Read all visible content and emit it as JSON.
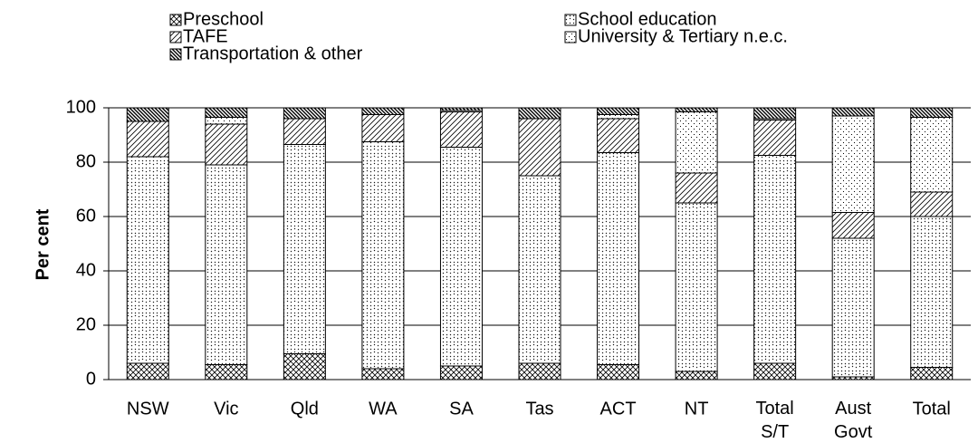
{
  "chart_data": {
    "type": "stacked_bar",
    "y_label": "Per cent",
    "categories": [
      "NSW",
      "Vic",
      "Qld",
      "WA",
      "SA",
      "Tas",
      "ACT",
      "NT",
      "Total S/T",
      "Aust Govt",
      "Total"
    ],
    "series": [
      {
        "name": "Preschool",
        "color": "#000000",
        "values": [
          6,
          5.5,
          9.5,
          4,
          5,
          6,
          5.5,
          3,
          6,
          1,
          4.5
        ]
      },
      {
        "name": "School education",
        "color": "#000000",
        "values": [
          76,
          73.5,
          77,
          83.5,
          80.5,
          69,
          78,
          62,
          76.5,
          51,
          55.5
        ]
      },
      {
        "name": "TAFE",
        "color": "#000000",
        "values": [
          13,
          15,
          9.5,
          10,
          13,
          21,
          12.5,
          11,
          13,
          9.5,
          9
        ]
      },
      {
        "name": "University & Tertiary n.e.c.",
        "color": "#000000",
        "values": [
          0,
          2.5,
          0,
          0,
          0.5,
          0,
          1.5,
          22.5,
          0.5,
          35.5,
          27.5
        ]
      },
      {
        "name": "Transportation & other",
        "color": "#000000",
        "values": [
          5,
          3.5,
          4,
          2.5,
          1,
          4,
          2.5,
          1.5,
          4,
          3,
          3.5
        ]
      }
    ],
    "ylim": [
      0,
      100
    ],
    "yticks": [
      0,
      20,
      40,
      60,
      80,
      100
    ],
    "grid": true
  }
}
